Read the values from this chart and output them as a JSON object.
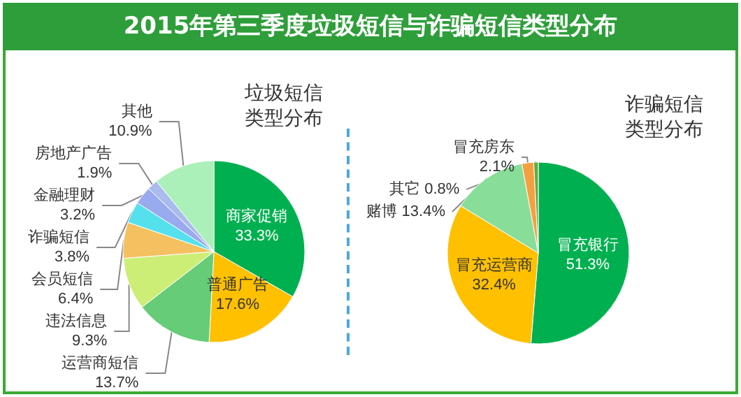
{
  "chart_data": [
    {
      "type": "pie",
      "title": "2015年第三季度垃圾短信与诈骗短信类型分布",
      "subtitle": "垃圾短信类型分布",
      "data_labels": true,
      "legend": false,
      "categories": [
        "商家促销",
        "普通广告",
        "运营商短信",
        "违法信息",
        "会员短信",
        "诈骗短信",
        "金融理财",
        "房地产广告",
        "其他"
      ],
      "values": [
        33.3,
        17.6,
        13.7,
        9.3,
        6.4,
        3.8,
        3.2,
        1.9,
        10.9
      ],
      "value_labels": [
        "33.3%",
        "17.6%",
        "13.7%",
        "9.3%",
        "6.4%",
        "3.8%",
        "3.2%",
        "1.9%",
        "10.9%"
      ],
      "colors": [
        "#00b050",
        "#ffc000",
        "#66cc77",
        "#ccee77",
        "#f5c060",
        "#55e0ee",
        "#99aaee",
        "#aabbee",
        "#aaf0b8"
      ]
    },
    {
      "type": "pie",
      "title": "诈骗短信类型分布",
      "data_labels": true,
      "legend": false,
      "categories": [
        "冒充银行",
        "冒充运营商",
        "赌博",
        "冒充房东",
        "其它"
      ],
      "values": [
        51.3,
        32.4,
        13.4,
        2.1,
        0.8
      ],
      "value_labels": [
        "51.3%",
        "32.4%",
        "13.4%",
        "2.1%",
        "0.8%"
      ],
      "colors": [
        "#00b050",
        "#ffc000",
        "#88dd99",
        "#f5a040",
        "#66aa44"
      ]
    }
  ]
}
